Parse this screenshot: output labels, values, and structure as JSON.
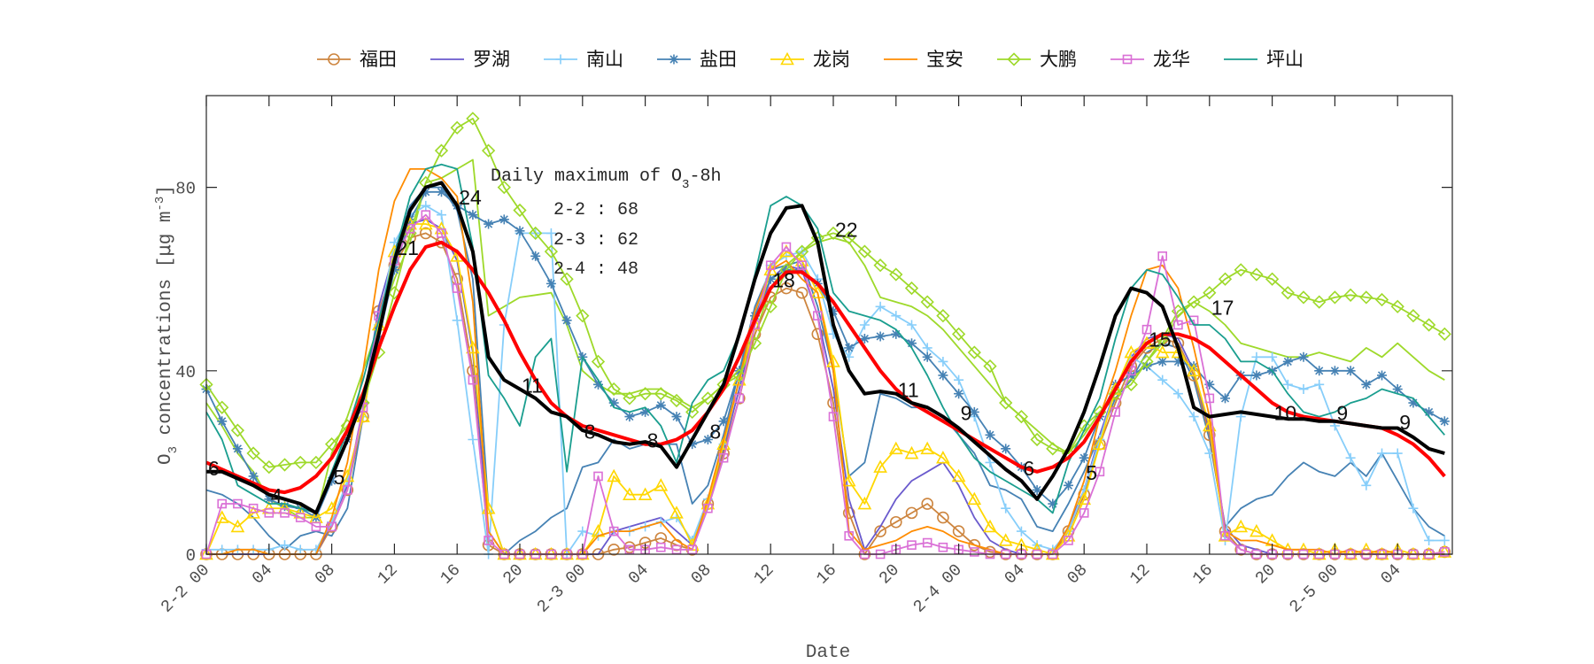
{
  "chart_data": {
    "type": "line",
    "xlabel": "Date",
    "ylabel": "O3 concentrations [μg m-3]",
    "ylabel_parts": {
      "species": "O",
      "sub": "3",
      "rest": " concentrations [",
      "mu": "μ",
      "unit": "g m",
      "sup": "-3",
      "end": "]"
    },
    "ylim": [
      0,
      100
    ],
    "yticks": [
      "0",
      "40",
      "80"
    ],
    "ytick_values": [
      0,
      40,
      80
    ],
    "xtick_labels": [
      "2-2 00",
      "04",
      "08",
      "12",
      "16",
      "20",
      "2-3 00",
      "04",
      "08",
      "12",
      "16",
      "20",
      "2-4 00",
      "04",
      "08",
      "12",
      "16",
      "20",
      "2-5 00",
      "04"
    ],
    "x": [
      "2-2 00",
      "2-2 01",
      "2-2 02",
      "2-2 03",
      "2-2 04",
      "2-2 05",
      "2-2 06",
      "2-2 07",
      "2-2 08",
      "2-2 09",
      "2-2 10",
      "2-2 11",
      "2-2 12",
      "2-2 13",
      "2-2 14",
      "2-2 15",
      "2-2 16",
      "2-2 17",
      "2-2 18",
      "2-2 19",
      "2-2 20",
      "2-2 21",
      "2-2 22",
      "2-2 23",
      "2-3 00",
      "2-3 01",
      "2-3 02",
      "2-3 03",
      "2-3 04",
      "2-3 05",
      "2-3 06",
      "2-3 07",
      "2-3 08",
      "2-3 09",
      "2-3 10",
      "2-3 11",
      "2-3 12",
      "2-3 13",
      "2-3 14",
      "2-3 15",
      "2-3 16",
      "2-3 17",
      "2-3 18",
      "2-3 19",
      "2-3 20",
      "2-3 21",
      "2-3 22",
      "2-3 23",
      "2-4 00",
      "2-4 01",
      "2-4 02",
      "2-4 03",
      "2-4 04",
      "2-4 05",
      "2-4 06",
      "2-4 07",
      "2-4 08",
      "2-4 09",
      "2-4 10",
      "2-4 11",
      "2-4 12",
      "2-4 13",
      "2-4 14",
      "2-4 15",
      "2-4 16",
      "2-4 17",
      "2-4 18",
      "2-4 19",
      "2-4 20",
      "2-4 21",
      "2-4 22",
      "2-4 23",
      "2-5 00",
      "2-5 01",
      "2-5 02",
      "2-5 03",
      "2-5 04",
      "2-5 05",
      "2-5 06",
      "2-5 07"
    ],
    "grid": false,
    "legend_placement": "top-outside",
    "series": [
      {
        "name": "福田",
        "color": "#cd853f",
        "marker": "circle",
        "values": [
          0,
          0,
          0,
          0,
          0,
          0,
          0,
          0,
          6,
          14,
          30,
          53,
          63,
          69,
          70,
          68,
          60,
          40,
          2,
          0,
          0,
          0,
          0,
          0,
          0,
          0,
          1,
          1.5,
          2.5,
          3.5,
          2,
          1,
          11,
          22,
          34,
          48,
          56,
          58,
          57,
          48,
          33,
          9,
          0,
          5,
          7,
          9,
          11,
          8,
          5,
          2,
          0.5,
          0,
          0,
          0,
          0,
          5,
          13,
          24,
          33,
          41,
          45,
          47,
          46,
          39,
          26,
          5,
          1,
          0,
          0,
          0,
          0,
          0,
          0,
          0,
          0,
          0,
          0,
          0,
          0,
          0.5
        ]
      },
      {
        "name": "罗湖",
        "color": "#6a5acd",
        "marker": "none",
        "values": [
          0,
          0,
          0,
          0,
          0,
          0,
          0,
          0,
          7,
          15,
          32,
          54,
          66,
          72,
          73,
          71,
          64,
          44,
          5,
          0,
          0,
          0,
          0,
          0,
          0,
          0,
          5,
          6,
          7,
          8,
          5,
          2,
          12,
          23,
          36,
          50,
          60,
          63,
          62,
          52,
          36,
          12,
          1,
          6,
          12,
          16,
          18,
          20,
          15,
          8,
          3,
          1,
          0,
          0,
          0,
          6,
          14,
          26,
          36,
          43,
          47,
          48,
          47,
          40,
          27,
          6,
          2,
          1,
          0,
          0,
          0,
          0,
          0,
          0,
          0,
          0,
          0,
          0,
          0,
          0
        ]
      },
      {
        "name": "南山",
        "color": "#87cefa",
        "marker": "plus",
        "values": [
          1,
          1,
          1,
          1,
          1,
          2,
          1,
          1,
          7,
          16,
          30,
          50,
          68,
          74,
          76,
          74,
          51,
          25,
          0,
          50,
          70,
          70,
          70,
          0,
          5,
          4,
          5,
          5,
          6,
          7,
          8,
          3,
          12,
          24,
          38,
          52,
          63,
          65,
          66,
          60,
          48,
          43,
          50,
          54,
          52,
          50,
          45,
          42,
          38,
          30,
          20,
          10,
          5,
          2,
          1,
          5,
          14,
          25,
          36,
          43,
          41,
          38,
          35,
          30,
          22,
          3,
          30,
          43,
          43,
          37,
          36,
          37,
          28,
          21,
          15,
          22,
          22,
          10,
          3,
          3
        ]
      },
      {
        "name": "盐田",
        "color": "#4682b4",
        "marker": "asterisk",
        "values": [
          36,
          29,
          23,
          17,
          12,
          10.5,
          10,
          8,
          16,
          25,
          33,
          47,
          62,
          73,
          79,
          79,
          76,
          74,
          72,
          73,
          70.5,
          65,
          59,
          51,
          43,
          37,
          33,
          30,
          31,
          32.5,
          30,
          24,
          25,
          29,
          40,
          52,
          60,
          62,
          62,
          59,
          53,
          45,
          47,
          47.5,
          48,
          46,
          43,
          39,
          35,
          31,
          26,
          23,
          19,
          14,
          11,
          15,
          21,
          30,
          37,
          39,
          41,
          42,
          42,
          41,
          37,
          34,
          39,
          39,
          40,
          42,
          43,
          40,
          40,
          40,
          37,
          39,
          36,
          33,
          31,
          29
        ]
      },
      {
        "name": "龙岗",
        "color": "#ffd700",
        "marker": "triangle",
        "values": [
          0,
          8,
          6,
          9,
          10,
          10,
          9,
          8,
          10,
          17,
          30,
          50,
          66,
          72,
          72,
          71,
          65,
          45,
          10,
          0,
          0,
          0,
          0,
          0,
          0,
          5,
          17,
          13,
          13,
          15,
          9,
          2,
          11,
          24,
          38,
          50,
          62,
          66,
          64,
          57,
          42,
          16,
          11,
          19,
          23,
          22,
          23,
          21,
          17,
          12,
          6,
          3,
          2,
          1,
          0,
          4,
          12,
          24,
          36,
          44,
          46,
          44,
          44,
          40,
          28,
          4,
          6,
          5,
          3,
          1,
          1,
          0,
          1,
          0,
          1,
          0,
          1,
          0,
          0,
          0.5
        ]
      },
      {
        "name": "宝安",
        "color": "#ff8c00",
        "marker": "none",
        "values": [
          0,
          0,
          1,
          1,
          0,
          0,
          0,
          0,
          8,
          20,
          40,
          62,
          77,
          84,
          84,
          82,
          78,
          55,
          5,
          0,
          0,
          0,
          0,
          0,
          0,
          4,
          5,
          5,
          6,
          7,
          3,
          1,
          12,
          25,
          38,
          53,
          62,
          64,
          60,
          57,
          40,
          5,
          1,
          2,
          3,
          5,
          6,
          5,
          3,
          2,
          1,
          0,
          0,
          0,
          0,
          6,
          16,
          30,
          40,
          52,
          62,
          63,
          58,
          45,
          30,
          5,
          3,
          3,
          2,
          1,
          1,
          1,
          0,
          1,
          0,
          1,
          0,
          0,
          0,
          0
        ]
      },
      {
        "name": "大鹏",
        "color": "#9ed92a",
        "marker": "diamond",
        "values": [
          37,
          32,
          27,
          22,
          19,
          19.5,
          20,
          20,
          24,
          28,
          33,
          44,
          57,
          70,
          81,
          88,
          93,
          95,
          88,
          80,
          75,
          70,
          66,
          60,
          52,
          42,
          36,
          34,
          35,
          35,
          33.5,
          31,
          34,
          37,
          39,
          46,
          54,
          62,
          66,
          69,
          70,
          69,
          66,
          63,
          61,
          58,
          55,
          52,
          48,
          44,
          41,
          33,
          30,
          25,
          23,
          22,
          28,
          31,
          35,
          37,
          42,
          47,
          53,
          55,
          57,
          60,
          62,
          61,
          60,
          57,
          56,
          55,
          56,
          56.5,
          56,
          55.5,
          54,
          52,
          50,
          48
        ]
      },
      {
        "name": "龙华",
        "color": "#da70d6",
        "marker": "square",
        "values": [
          0,
          11,
          11,
          10,
          9,
          9,
          8,
          6,
          6,
          14,
          32,
          52,
          64,
          71,
          74,
          70,
          58,
          38,
          3,
          0,
          0,
          0,
          0,
          0,
          0,
          17,
          5,
          1,
          1,
          1.5,
          1,
          1,
          10,
          21,
          34,
          50,
          63,
          67,
          63,
          52,
          30,
          4,
          0,
          0,
          1,
          2,
          2.5,
          1.5,
          1,
          0.5,
          0,
          0,
          0,
          0,
          0,
          3,
          9,
          18,
          31,
          40,
          49,
          65,
          50,
          51,
          34,
          4,
          1,
          0,
          0,
          0,
          0,
          0,
          0,
          0,
          0,
          0,
          0,
          0,
          0,
          0.5
        ]
      },
      {
        "name": "坪山",
        "color": "#1a9e8f",
        "marker": "none",
        "values": [
          31,
          25,
          15,
          13,
          11,
          11,
          10,
          9,
          18,
          27,
          38,
          51,
          65,
          78,
          84,
          85,
          84,
          67,
          39,
          34,
          28,
          43,
          47,
          18,
          43,
          38,
          32,
          31,
          32,
          28,
          20,
          33,
          38,
          40,
          48,
          61,
          76,
          78,
          76,
          71,
          57,
          53,
          52,
          51,
          49,
          45,
          39,
          32,
          26,
          21,
          18,
          16,
          14,
          12,
          9,
          20,
          27,
          34,
          47,
          58,
          62,
          61,
          56,
          50,
          50,
          47,
          42,
          42,
          40,
          35,
          31,
          30,
          31,
          33,
          34,
          36,
          35,
          34,
          30,
          26
        ]
      }
    ],
    "unlabeled_series": [
      {
        "color": "#9ed92a",
        "values": [
          33,
          28,
          22,
          18,
          12,
          10,
          8,
          8,
          22,
          30,
          40,
          50,
          60,
          68,
          81,
          82,
          84,
          86,
          52,
          54,
          56,
          56.5,
          57,
          50,
          40,
          37,
          35,
          35,
          36,
          36,
          34,
          32,
          34,
          37,
          40,
          48,
          58,
          63,
          66,
          68,
          69,
          68,
          63,
          56,
          55,
          54,
          52,
          49,
          45,
          41,
          37,
          33,
          30,
          27,
          24,
          22,
          26,
          31,
          34,
          38,
          42,
          46,
          52,
          55,
          53,
          50,
          46,
          45,
          44,
          43,
          43,
          44,
          43,
          42,
          45,
          43,
          46,
          43,
          40,
          38
        ]
      },
      {
        "color": "#4682b4",
        "values": [
          14,
          13,
          11,
          8,
          4,
          1,
          4,
          5,
          4,
          10,
          30,
          50,
          66,
          76,
          80,
          80,
          75,
          60,
          10,
          0,
          3,
          5,
          8,
          10,
          19,
          20,
          25,
          23,
          24,
          24,
          24,
          11,
          15,
          26,
          40,
          54,
          62,
          63,
          64,
          54,
          40,
          17,
          20,
          35,
          34,
          32,
          32,
          30,
          26,
          22,
          15,
          14,
          12,
          6,
          5,
          11,
          18,
          26,
          34,
          38,
          44,
          46,
          45,
          38,
          25,
          6,
          10,
          12,
          13,
          17,
          20,
          18,
          17,
          20,
          17,
          22,
          16,
          10,
          6,
          4
        ]
      },
      {
        "color": "#ff0000",
        "width": 4,
        "values": [
          20,
          18.5,
          17,
          15.5,
          14,
          13.5,
          14.5,
          17,
          21,
          27,
          35,
          45,
          54,
          62,
          67,
          68,
          66,
          62,
          57,
          51,
          44,
          38,
          33,
          30,
          28,
          27,
          26,
          25,
          24,
          24,
          25,
          27,
          31,
          36,
          43,
          51,
          58,
          61.5,
          61.5,
          59,
          55,
          50,
          45,
          40,
          36,
          33,
          31,
          29,
          27,
          25,
          23,
          21,
          19,
          18,
          19,
          21,
          24.5,
          30,
          36,
          42,
          46,
          48,
          48,
          47,
          45,
          42,
          39,
          36,
          33,
          31,
          30,
          29.5,
          29,
          28.5,
          28,
          27.5,
          26,
          24,
          21,
          17
        ]
      },
      {
        "color": "#000000",
        "width": 4,
        "values": [
          18,
          18,
          16.5,
          15,
          13,
          12,
          11,
          9,
          17,
          25,
          34,
          48,
          64,
          75,
          80,
          81,
          76,
          66,
          43,
          38,
          36,
          34,
          31,
          30,
          27,
          26,
          24.5,
          24,
          24.5,
          23.5,
          19,
          25,
          31,
          37,
          48,
          60,
          70,
          75.5,
          76,
          68,
          50,
          40,
          35,
          35.5,
          35,
          33,
          32,
          30,
          27.5,
          24.5,
          21.5,
          18.5,
          16,
          12,
          17,
          23,
          31,
          41,
          52,
          58,
          57,
          54,
          45,
          32,
          30,
          30.5,
          31,
          30.5,
          30,
          29.5,
          29.5,
          29,
          29,
          28.5,
          28,
          27.5,
          27.5,
          25.5,
          23,
          22
        ]
      }
    ],
    "annotations": [
      {
        "x": "2-2 00",
        "y": 18,
        "text": "6"
      },
      {
        "x": "2-2 04",
        "y": 12,
        "text": "4"
      },
      {
        "x": "2-2 08",
        "y": 16,
        "text": "5"
      },
      {
        "x": "2-2 12",
        "y": 66,
        "text": "21"
      },
      {
        "x": "2-2 16",
        "y": 77,
        "text": "24"
      },
      {
        "x": "2-2 20",
        "y": 36,
        "text": "11"
      },
      {
        "x": "2-3 00",
        "y": 26,
        "text": "8"
      },
      {
        "x": "2-3 04",
        "y": 24,
        "text": "8"
      },
      {
        "x": "2-3 08",
        "y": 26,
        "text": "8"
      },
      {
        "x": "2-3 12",
        "y": 59,
        "text": "18"
      },
      {
        "x": "2-3 16",
        "y": 70,
        "text": "22"
      },
      {
        "x": "2-3 20",
        "y": 35,
        "text": "11"
      },
      {
        "x": "2-4 00",
        "y": 30,
        "text": "9"
      },
      {
        "x": "2-4 04",
        "y": 18,
        "text": "6"
      },
      {
        "x": "2-4 08",
        "y": 17,
        "text": "5"
      },
      {
        "x": "2-4 12",
        "y": 46,
        "text": "15"
      },
      {
        "x": "2-4 16",
        "y": 53,
        "text": "17"
      },
      {
        "x": "2-4 20",
        "y": 30,
        "text": "10"
      },
      {
        "x": "2-5 00",
        "y": 30,
        "text": "9"
      },
      {
        "x": "2-5 04",
        "y": 28,
        "text": "9"
      }
    ],
    "textbox": {
      "title_main": "Daily maximum of O",
      "title_sub": "3",
      "title_end": "-8h",
      "rows": [
        "2-2 : 68",
        "2-3 : 62",
        "2-4 : 48"
      ]
    }
  }
}
